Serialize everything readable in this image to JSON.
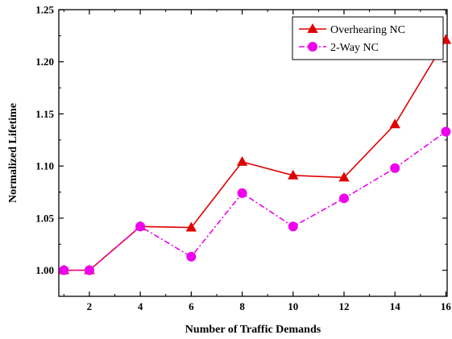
{
  "chart_data": {
    "type": "line",
    "xlabel": "Number of Traffic Demands",
    "ylabel": "Normalized Lifetime",
    "x": [
      1,
      2,
      4,
      6,
      8,
      10,
      12,
      14,
      16
    ],
    "xticks": [
      2,
      4,
      6,
      8,
      10,
      12,
      14,
      16
    ],
    "xtick_labels": [
      "2",
      "4",
      "6",
      "8",
      "10",
      "12",
      "14",
      "16"
    ],
    "xlim": [
      0.8,
      16.05
    ],
    "yticks": [
      1.0,
      1.05,
      1.1,
      1.15,
      1.2,
      1.25
    ],
    "ytick_labels": [
      "1.00",
      "1.05",
      "1.10",
      "1.15",
      "1.20",
      "1.25"
    ],
    "ylim": [
      0.975,
      1.25
    ],
    "grid": false,
    "legend_position": "top-right",
    "series": [
      {
        "name": "Overhearing NC",
        "values": [
          1.0,
          1.0,
          1.042,
          1.041,
          1.104,
          1.091,
          1.089,
          1.14,
          1.221
        ],
        "color": "#e00000",
        "line_style": "solid",
        "marker": "triangle"
      },
      {
        "name": "2-Way NC",
        "values": [
          1.0,
          1.0,
          1.042,
          1.013,
          1.074,
          1.042,
          1.069,
          1.098,
          1.133
        ],
        "color": "#ee00ee",
        "line_style": "dash-dot",
        "marker": "circle"
      }
    ]
  }
}
